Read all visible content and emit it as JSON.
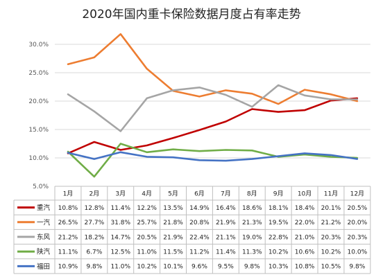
{
  "chart_data": {
    "type": "line",
    "title": "2020年国内重卡保险数据月度占有率走势",
    "categories": [
      "1月",
      "2月",
      "3月",
      "4月",
      "5月",
      "6月",
      "7月",
      "8月",
      "9月",
      "10月",
      "11月",
      "12月"
    ],
    "ylim": [
      5.0,
      35.0
    ],
    "yticks": [
      "5.0%",
      "10.0%",
      "15.0%",
      "20.0%",
      "25.0%",
      "30.0%"
    ],
    "ytick_values": [
      5,
      10,
      15,
      20,
      25,
      30
    ],
    "grid": true,
    "legend": "data-table",
    "series": [
      {
        "name": "重汽",
        "color": "#c00000",
        "values": [
          10.8,
          12.8,
          11.4,
          12.2,
          13.5,
          14.9,
          16.4,
          18.6,
          18.1,
          18.4,
          20.1,
          20.5
        ],
        "labels": [
          "10.8%",
          "12.8%",
          "11.4%",
          "12.2%",
          "13.5%",
          "14.9%",
          "16.4%",
          "18.6%",
          "18.1%",
          "18.4%",
          "20.1%",
          "20.5%"
        ]
      },
      {
        "name": "一汽",
        "color": "#ed7d31",
        "values": [
          26.5,
          27.7,
          31.8,
          25.7,
          21.8,
          20.8,
          21.9,
          21.3,
          19.5,
          22.0,
          21.2,
          20.0
        ],
        "labels": [
          "26.5%",
          "27.7%",
          "31.8%",
          "25.7%",
          "21.8%",
          "20.8%",
          "21.9%",
          "21.3%",
          "19.5%",
          "22.0%",
          "21.2%",
          "20.0%"
        ]
      },
      {
        "name": "东风",
        "color": "#a5a5a5",
        "values": [
          21.2,
          18.2,
          14.7,
          20.5,
          21.9,
          22.4,
          21.1,
          19.0,
          22.8,
          21.0,
          20.3,
          20.3
        ],
        "labels": [
          "21.2%",
          "18.2%",
          "14.7%",
          "20.5%",
          "21.9%",
          "22.4%",
          "21.1%",
          "19.0%",
          "22.8%",
          "21.0%",
          "20.3%",
          "20.3%"
        ]
      },
      {
        "name": "陕汽",
        "color": "#70ad47",
        "values": [
          11.1,
          6.7,
          12.5,
          11.0,
          11.5,
          11.2,
          11.4,
          11.3,
          10.2,
          10.6,
          10.2,
          10.0
        ],
        "labels": [
          "11.1%",
          "6.7%",
          "12.5%",
          "11.0%",
          "11.5%",
          "11.2%",
          "11.4%",
          "11.3%",
          "10.2%",
          "10.6%",
          "10.2%",
          "10.0%"
        ]
      },
      {
        "name": "福田",
        "color": "#4472c4",
        "values": [
          10.9,
          9.8,
          11.0,
          10.2,
          10.1,
          9.6,
          9.5,
          9.8,
          10.3,
          10.8,
          10.5,
          9.8
        ],
        "labels": [
          "10.9%",
          "9.8%",
          "11.0%",
          "10.2%",
          "10.1%",
          "9.6%",
          "9.5%",
          "9.8%",
          "10.3%",
          "10.8%",
          "10.5%",
          "9.8%"
        ]
      }
    ]
  }
}
